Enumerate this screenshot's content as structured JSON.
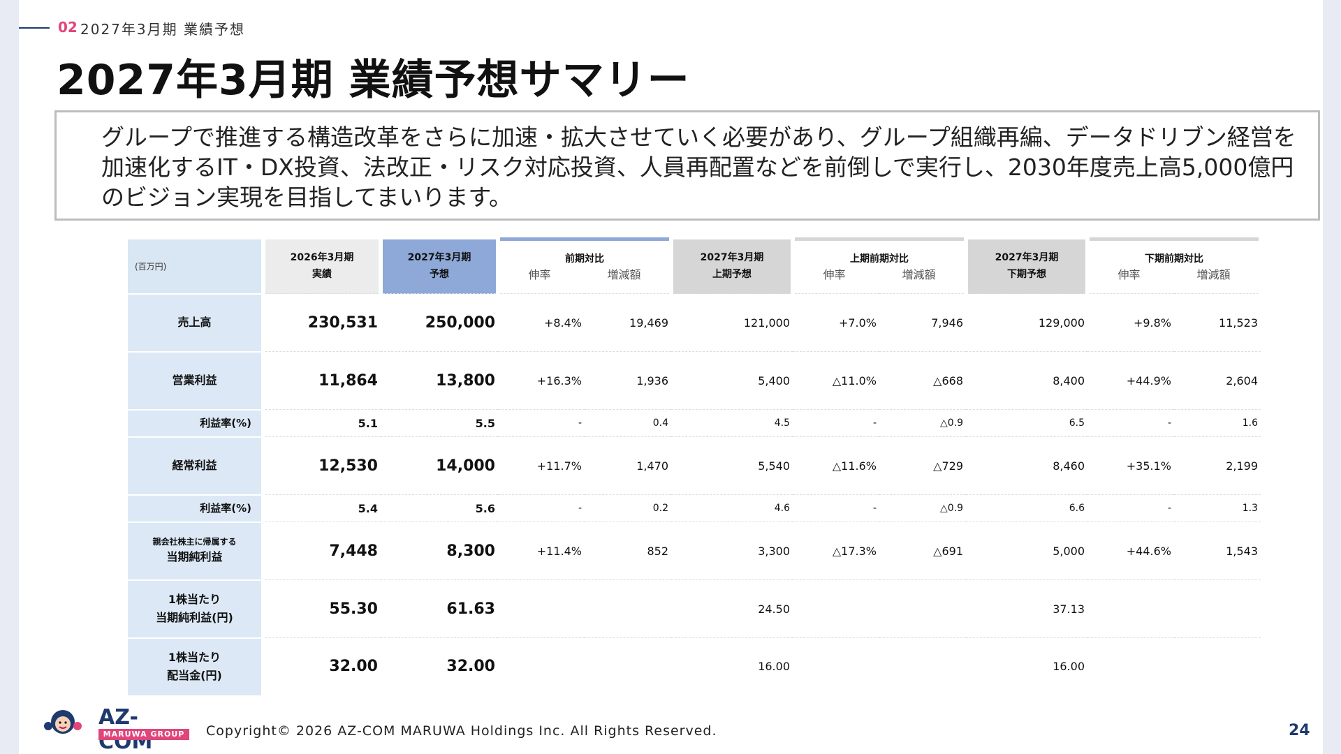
{
  "header": {
    "section_number": "02",
    "section_title": "2027年3月期 業績予想",
    "page_title": "2027年3月期 業績予想サマリー"
  },
  "summary_text": "グループで推進する構造改革をさらに加速・拡大させていく必要があり、グループ組織再編、データドリブン経営を加速化するIT・DX投資、法改正・リスク対応投資、人員再配置などを前倒しで実行し、2030年度売上高5,000億円のビジョン実現を目指してまいります。",
  "table": {
    "unit": "(百万円)",
    "headers": {
      "actual_line1": "2026年3月期",
      "actual_line2": "実績",
      "forecast_line1": "2027年3月期",
      "forecast_line2": "予想",
      "yoy_title": "前期対比",
      "h1_line1": "2027年3月期",
      "h1_line2": "上期予想",
      "h1_yoy_title": "上期前期対比",
      "h2_line1": "2027年3月期",
      "h2_line2": "下期予想",
      "h2_yoy_title": "下期前期対比",
      "growth": "伸率",
      "change": "増減額"
    },
    "rows": [
      {
        "label": "売上高",
        "actual": "230,531",
        "forecast": "250,000",
        "yoy_rate": "+8.4%",
        "yoy_amt": "19,469",
        "h1": "121,000",
        "h1_rate": "+7.0%",
        "h1_amt": "7,946",
        "h2": "129,000",
        "h2_rate": "+9.8%",
        "h2_amt": "11,523"
      },
      {
        "label": "営業利益",
        "actual": "11,864",
        "forecast": "13,800",
        "yoy_rate": "+16.3%",
        "yoy_amt": "1,936",
        "h1": "5,400",
        "h1_rate": "△11.0%",
        "h1_amt": "△668",
        "h2": "8,400",
        "h2_rate": "+44.9%",
        "h2_amt": "2,604"
      },
      {
        "label": "利益率(%)",
        "actual": "5.1",
        "forecast": "5.5",
        "yoy_rate": "-",
        "yoy_amt": "0.4",
        "h1": "4.5",
        "h1_rate": "-",
        "h1_amt": "△0.9",
        "h2": "6.5",
        "h2_rate": "-",
        "h2_amt": "1.6"
      },
      {
        "label": "経常利益",
        "actual": "12,530",
        "forecast": "14,000",
        "yoy_rate": "+11.7%",
        "yoy_amt": "1,470",
        "h1": "5,540",
        "h1_rate": "△11.6%",
        "h1_amt": "△729",
        "h2": "8,460",
        "h2_rate": "+35.1%",
        "h2_amt": "2,199"
      },
      {
        "label": "利益率(%)",
        "actual": "5.4",
        "forecast": "5.6",
        "yoy_rate": "-",
        "yoy_amt": "0.2",
        "h1": "4.6",
        "h1_rate": "-",
        "h1_amt": "△0.9",
        "h2": "6.6",
        "h2_rate": "-",
        "h2_amt": "1.3"
      },
      {
        "label_small": "親会社株主に帰属する",
        "label": "当期純利益",
        "actual": "7,448",
        "forecast": "8,300",
        "yoy_rate": "+11.4%",
        "yoy_amt": "852",
        "h1": "3,300",
        "h1_rate": "△17.3%",
        "h1_amt": "△691",
        "h2": "5,000",
        "h2_rate": "+44.6%",
        "h2_amt": "1,543"
      },
      {
        "label_line1": "1株当たり",
        "label": "当期純利益(円)",
        "actual": "55.30",
        "forecast": "61.63",
        "h1": "24.50",
        "h2": "37.13"
      },
      {
        "label_line1": "1株当たり",
        "label": "配当金(円)",
        "actual": "32.00",
        "forecast": "32.00",
        "h1": "16.00",
        "h2": "16.00"
      }
    ]
  },
  "footer": {
    "logo_text": "AZ-COM",
    "logo_sub": "MARUWA GROUP",
    "copyright": "Copyright© 2026 AZ-COM MARUWA Holdings Inc. All Rights Reserved.",
    "page_number": "24"
  }
}
